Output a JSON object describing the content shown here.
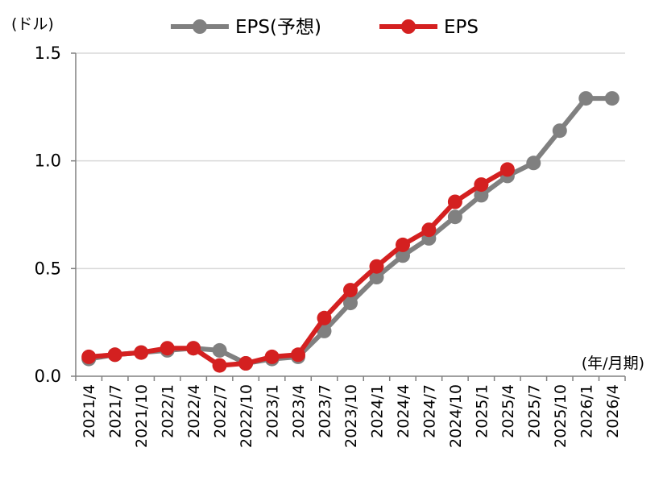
{
  "chart_data": {
    "type": "line",
    "y_unit_label": "(ドル)",
    "x_unit_label": "(年/月期)",
    "ylim": [
      0,
      1.5
    ],
    "yticks": [
      "0.0",
      "0.5",
      "1.0",
      "1.5"
    ],
    "grid": true,
    "legend_position": "top",
    "categories": [
      "2021/4",
      "2021/7",
      "2021/10",
      "2022/1",
      "2022/4",
      "2022/7",
      "2022/10",
      "2023/1",
      "2023/4",
      "2023/7",
      "2023/10",
      "2024/1",
      "2024/4",
      "2024/7",
      "2024/10",
      "2025/1",
      "2025/4",
      "2025/7",
      "2025/10",
      "2026/1",
      "2026/4"
    ],
    "series": [
      {
        "name": "EPS(予想)",
        "color": "#808080",
        "values": [
          0.08,
          0.1,
          0.11,
          0.12,
          0.13,
          0.12,
          0.06,
          0.08,
          0.09,
          0.21,
          0.34,
          0.46,
          0.56,
          0.64,
          0.74,
          0.84,
          0.93,
          0.99,
          1.14,
          1.29,
          1.29
        ]
      },
      {
        "name": "EPS",
        "color": "#d42020",
        "values": [
          0.09,
          0.1,
          0.11,
          0.13,
          0.13,
          0.05,
          0.06,
          0.09,
          0.1,
          0.27,
          0.4,
          0.51,
          0.61,
          0.68,
          0.81,
          0.89,
          0.96,
          null,
          null,
          null,
          null
        ]
      }
    ]
  }
}
